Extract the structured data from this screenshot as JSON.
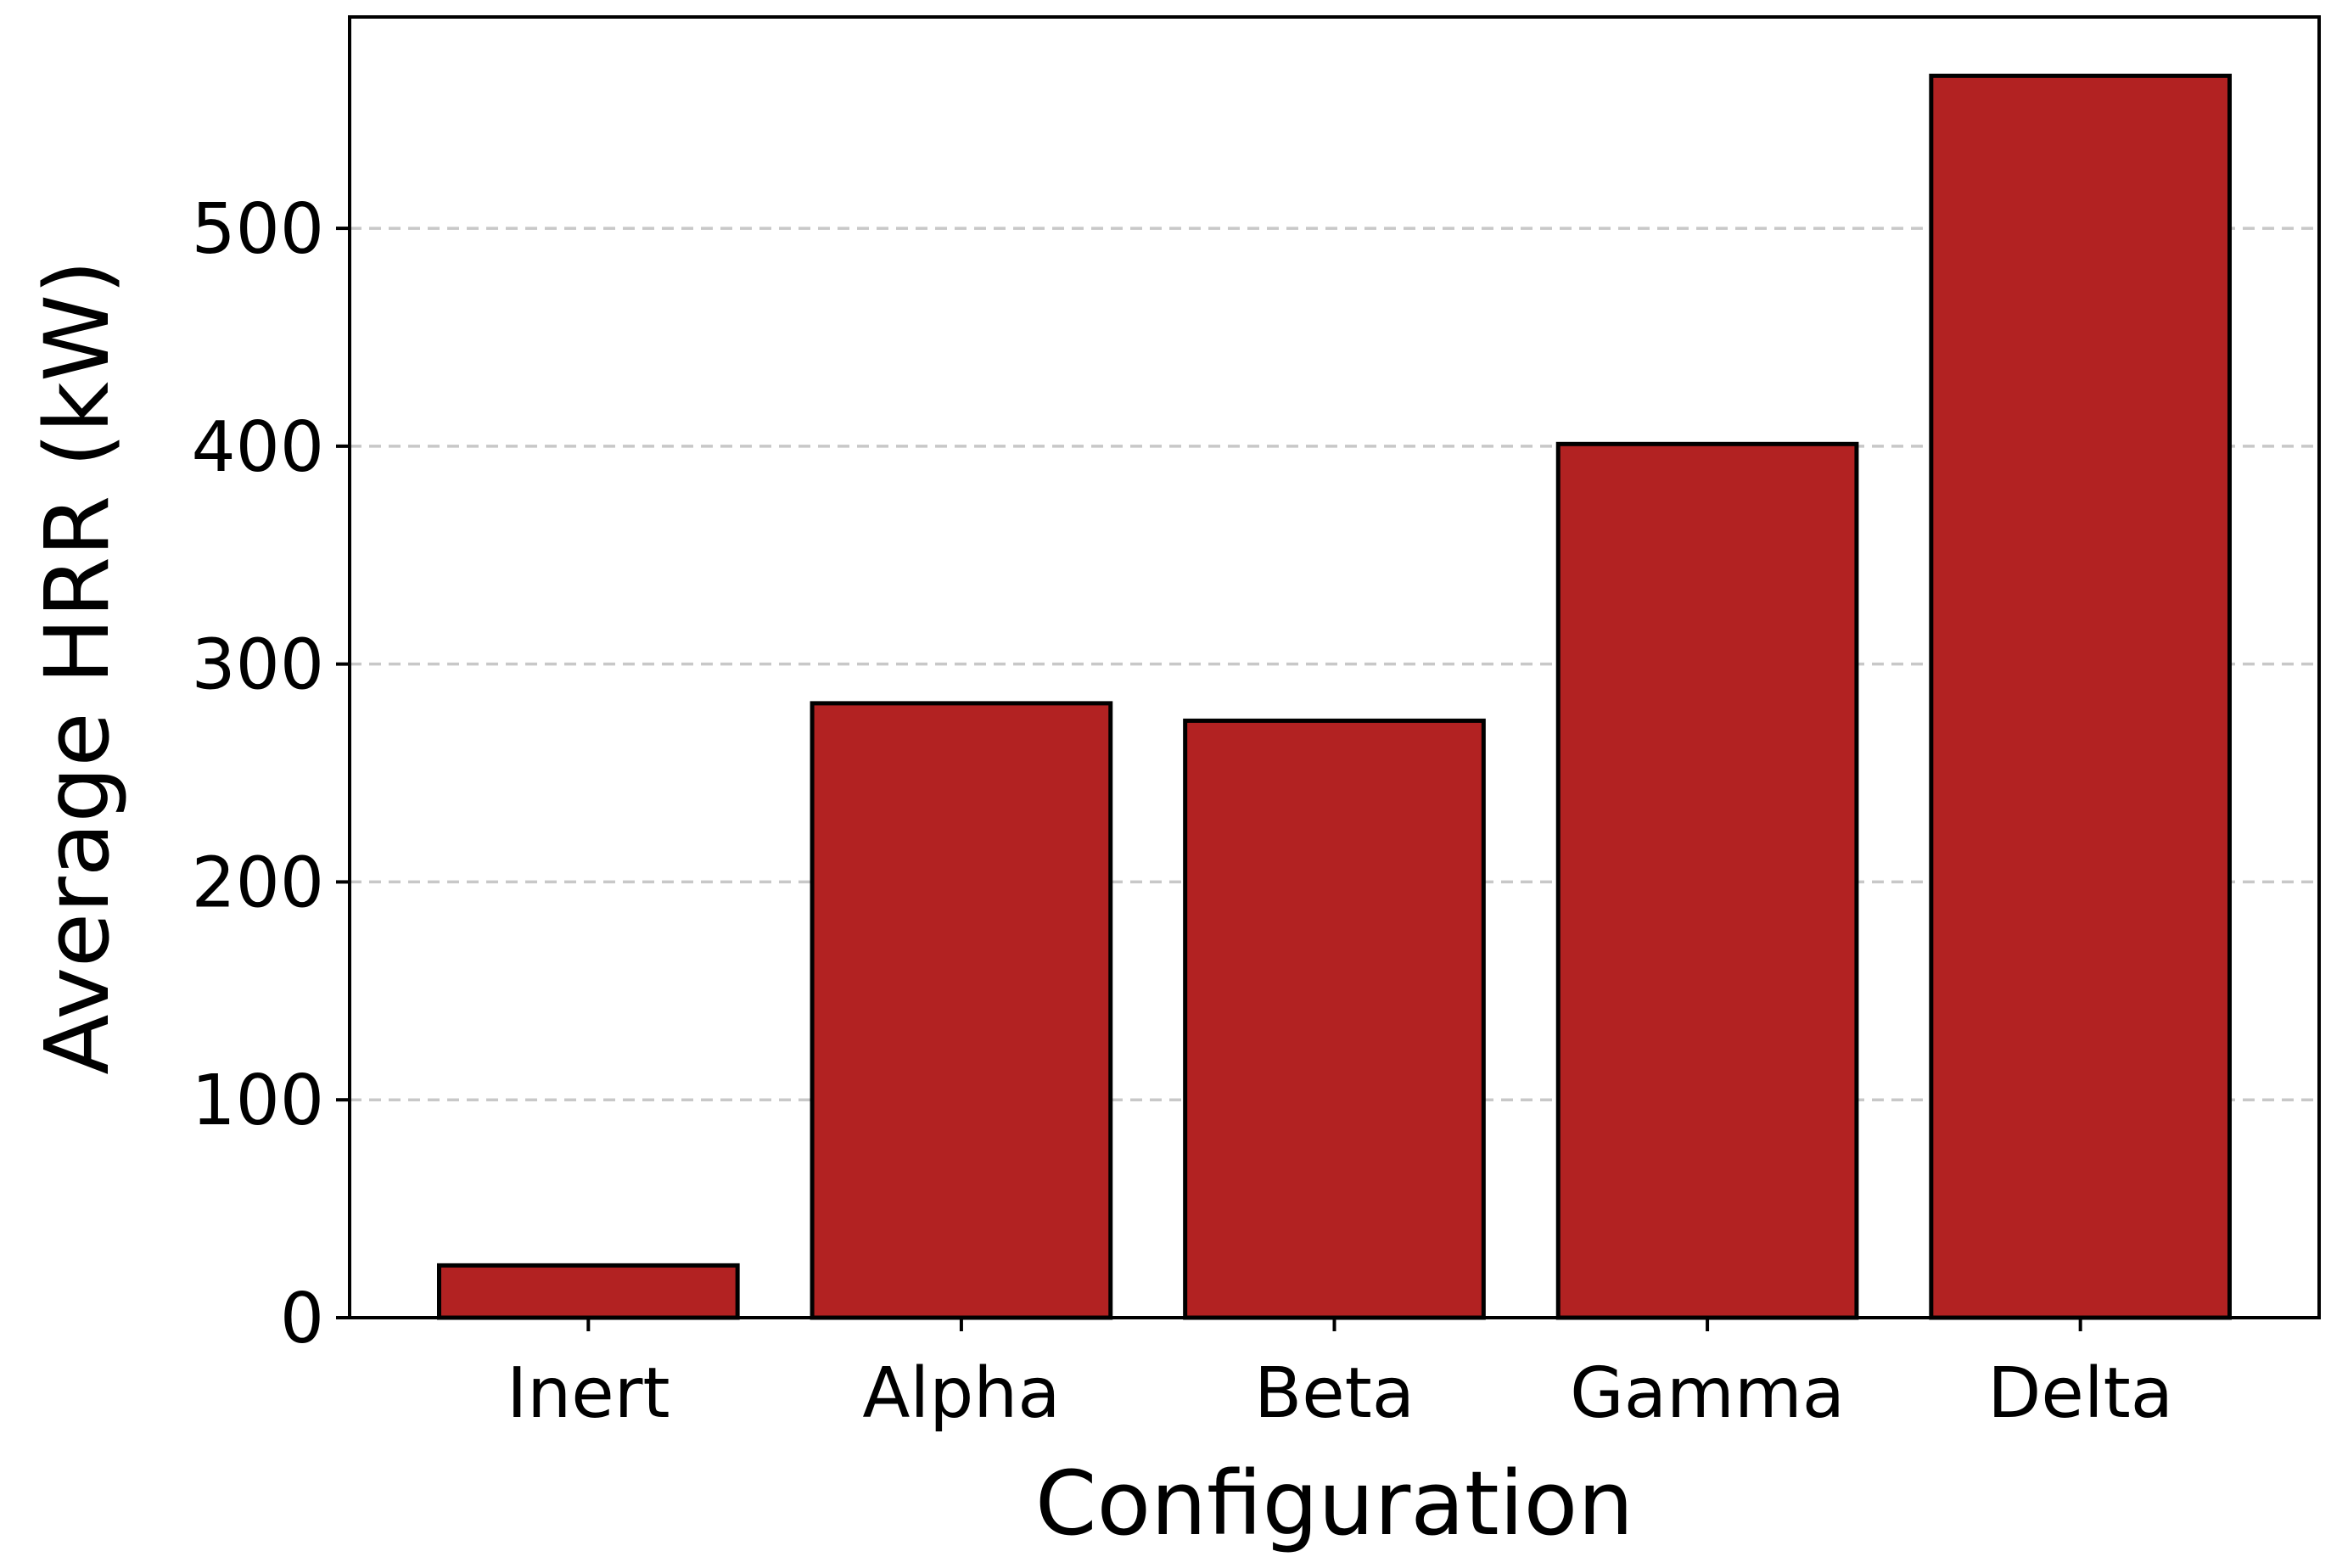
{
  "chart_data": {
    "type": "bar",
    "title": "",
    "xlabel": "Configuration",
    "ylabel": "Average HRR (kW)",
    "categories": [
      "Inert",
      "Alpha",
      "Beta",
      "Gamma",
      "Delta"
    ],
    "values": [
      24,
      282,
      274,
      401,
      570
    ],
    "ylim": [
      0,
      597
    ],
    "yticks": [
      0,
      100,
      200,
      300,
      400,
      500
    ],
    "grid": "y-dashed",
    "colors": {
      "bar_fill": "#b22222",
      "bar_edge": "#000000",
      "grid": "#c8c8c8",
      "axis": "#000000"
    }
  }
}
